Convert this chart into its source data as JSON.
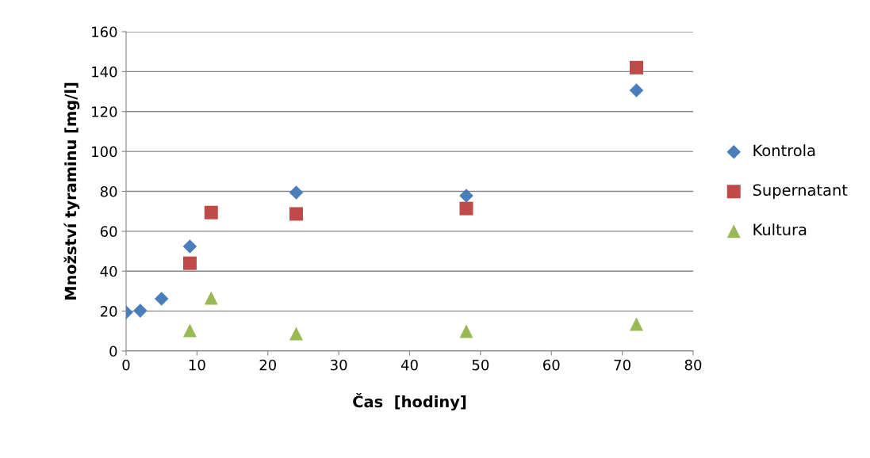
{
  "chart_data": {
    "type": "scatter",
    "xlabel": "Čas  [hodiny]",
    "ylabel": "Množství tyraminu [mg/l]",
    "xlim": [
      0,
      80
    ],
    "xticks": [
      0,
      10,
      20,
      30,
      40,
      50,
      60,
      70,
      80
    ],
    "ylim": [
      0,
      160
    ],
    "yticks": [
      0,
      20,
      40,
      60,
      80,
      100,
      120,
      140,
      160
    ],
    "grid": "y",
    "legend": "right",
    "series": [
      {
        "name": "Kontrola",
        "color": "#4a7ebb",
        "marker": "diamond",
        "x": [
          0,
          2,
          5,
          9,
          24,
          48,
          72
        ],
        "values": [
          19.4,
          20.2,
          26.2,
          52.4,
          79.4,
          77.8,
          130.6
        ]
      },
      {
        "name": "Supernatant",
        "color": "#be4b48",
        "marker": "square",
        "x": [
          9,
          12,
          24,
          48,
          72
        ],
        "values": [
          44,
          69.4,
          68.7,
          71.4,
          142
        ]
      },
      {
        "name": "Kultura",
        "color": "#98b954",
        "marker": "triangle",
        "x": [
          9,
          12,
          24,
          48,
          72
        ],
        "values": [
          10.3,
          26.6,
          8.7,
          9.9,
          13.5
        ]
      }
    ]
  }
}
